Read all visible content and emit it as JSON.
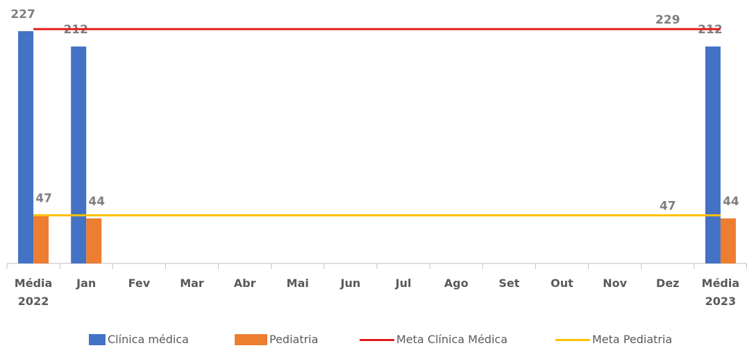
{
  "chart_data": {
    "type": "bar",
    "categories": [
      "Média 2022",
      "Jan",
      "Fev",
      "Mar",
      "Abr",
      "Mai",
      "Jun",
      "Jul",
      "Ago",
      "Set",
      "Out",
      "Nov",
      "Dez",
      "Média 2023"
    ],
    "series": [
      {
        "name": "Clínica médica",
        "kind": "bar",
        "color": "#4472c4",
        "values": [
          227,
          212,
          null,
          null,
          null,
          null,
          null,
          null,
          null,
          null,
          null,
          null,
          null,
          212
        ]
      },
      {
        "name": "Pediatria",
        "kind": "bar",
        "color": "#ed7d31",
        "values": [
          47,
          44,
          null,
          null,
          null,
          null,
          null,
          null,
          null,
          null,
          null,
          null,
          null,
          44
        ]
      },
      {
        "name": "Meta Clínica Médica",
        "kind": "line",
        "color": "#e31a1c",
        "values": [
          229,
          229,
          229,
          229,
          229,
          229,
          229,
          229,
          229,
          229,
          229,
          229,
          229,
          229
        ],
        "value_labels": [
          null,
          null,
          null,
          null,
          null,
          null,
          null,
          null,
          null,
          null,
          null,
          null,
          "229",
          null
        ]
      },
      {
        "name": "Meta Pediatria",
        "kind": "line",
        "color": "#ffc000",
        "values": [
          47,
          47,
          47,
          47,
          47,
          47,
          47,
          47,
          47,
          47,
          47,
          47,
          47,
          47
        ],
        "value_labels": [
          null,
          null,
          null,
          null,
          null,
          null,
          null,
          null,
          null,
          null,
          null,
          null,
          "47",
          null
        ]
      }
    ],
    "ylim": [
      0,
      230
    ]
  }
}
